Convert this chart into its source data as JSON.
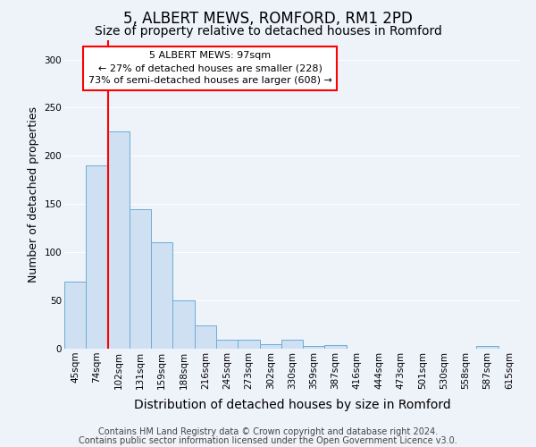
{
  "title": "5, ALBERT MEWS, ROMFORD, RM1 2PD",
  "subtitle": "Size of property relative to detached houses in Romford",
  "xlabel": "Distribution of detached houses by size in Romford",
  "ylabel": "Number of detached properties",
  "bar_color": "#cfe0f3",
  "bar_edge_color": "#6aaed6",
  "annotation_line1": "5 ALBERT MEWS: 97sqm",
  "annotation_line2": "← 27% of detached houses are smaller (228)",
  "annotation_line3": "73% of semi-detached houses are larger (608) →",
  "annotation_box_color": "white",
  "annotation_box_edge": "red",
  "vline_color": "red",
  "vline_pos": 1.5,
  "categories": [
    "45sqm",
    "74sqm",
    "102sqm",
    "131sqm",
    "159sqm",
    "188sqm",
    "216sqm",
    "245sqm",
    "273sqm",
    "302sqm",
    "330sqm",
    "359sqm",
    "387sqm",
    "416sqm",
    "444sqm",
    "473sqm",
    "501sqm",
    "530sqm",
    "558sqm",
    "587sqm",
    "615sqm"
  ],
  "values": [
    70,
    190,
    225,
    145,
    110,
    50,
    24,
    9,
    9,
    5,
    9,
    3,
    4,
    0,
    0,
    0,
    0,
    0,
    0,
    3,
    0
  ],
  "ylim": [
    0,
    320
  ],
  "yticks": [
    0,
    50,
    100,
    150,
    200,
    250,
    300
  ],
  "footer1": "Contains HM Land Registry data © Crown copyright and database right 2024.",
  "footer2": "Contains public sector information licensed under the Open Government Licence v3.0.",
  "background_color": "#eef2f9",
  "grid_color": "white",
  "title_fontsize": 12,
  "subtitle_fontsize": 10,
  "xlabel_fontsize": 10,
  "ylabel_fontsize": 9,
  "tick_fontsize": 7.5,
  "annotation_fontsize": 8,
  "footer_fontsize": 7
}
